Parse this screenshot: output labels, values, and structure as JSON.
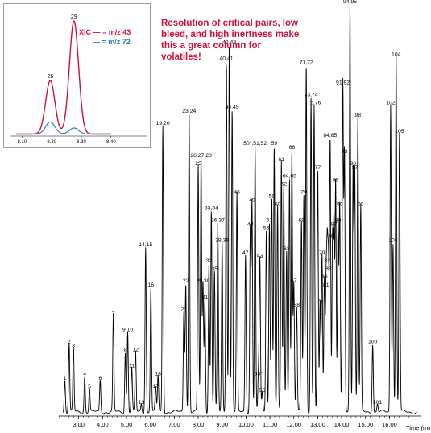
{
  "callout": "Resolution of critical pairs, low bleed, and high inertness make this a great column for volatiles!",
  "colors": {
    "main_trace": "#000000",
    "xic_43": "#d0103a",
    "xic_72": "#2a7fc0"
  },
  "chart_data": [
    {
      "type": "line",
      "title": "",
      "xlabel": "Time (min)",
      "ylabel": "",
      "xlim": [
        2.0,
        17.3
      ],
      "ylim": [
        0,
        100
      ],
      "x_ticks": [
        "3.00",
        "4.00",
        "5.00",
        "6.00",
        "7.00",
        "8.00",
        "9.00",
        "10.00",
        "11.00",
        "12.00",
        "13.00",
        "14.00",
        "15.00",
        "16.00"
      ],
      "peaks": [
        {
          "label": "1",
          "x": 2.42,
          "y": 8
        },
        {
          "label": "2",
          "x": 2.6,
          "y": 17
        },
        {
          "label": "3",
          "x": 2.78,
          "y": 16
        },
        {
          "label": "4",
          "x": 3.25,
          "y": 9
        },
        {
          "label": "5",
          "x": 3.45,
          "y": 6
        },
        {
          "label": "6",
          "x": 3.9,
          "y": 8
        },
        {
          "label": "7",
          "x": 4.45,
          "y": 24
        },
        {
          "label": "8",
          "x": 4.95,
          "y": 15
        },
        {
          "label": "9,10",
          "x": 5.05,
          "y": 20
        },
        {
          "label": "11",
          "x": 5.22,
          "y": 11
        },
        {
          "label": "12",
          "x": 5.38,
          "y": 15
        },
        {
          "label": "13",
          "x": 5.62,
          "y": 2
        },
        {
          "label": "14,15",
          "x": 5.8,
          "y": 41
        },
        {
          "label": "16",
          "x": 6.02,
          "y": 31
        },
        {
          "label": "17",
          "x": 6.22,
          "y": 6
        },
        {
          "label": "18",
          "x": 6.32,
          "y": 9
        },
        {
          "label": "19,20",
          "x": 6.52,
          "y": 71
        },
        {
          "label": "21",
          "x": 7.4,
          "y": 25
        },
        {
          "label": "22",
          "x": 7.48,
          "y": 32
        },
        {
          "label": "23,24",
          "x": 7.62,
          "y": 74
        },
        {
          "label": "25",
          "x": 8.0,
          "y": 61
        },
        {
          "label": "26,27,28",
          "x": 8.12,
          "y": 63
        },
        {
          "label": "29,30",
          "x": 8.2,
          "y": 32
        },
        {
          "label": "31",
          "x": 8.28,
          "y": 28
        },
        {
          "label": "32",
          "x": 8.45,
          "y": 37
        },
        {
          "label": "33,34",
          "x": 8.55,
          "y": 50
        },
        {
          "label": "35",
          "x": 8.68,
          "y": 35
        },
        {
          "label": "36,37",
          "x": 8.82,
          "y": 47
        },
        {
          "label": "38,39",
          "x": 9.0,
          "y": 42
        },
        {
          "label": "40,41",
          "x": 9.18,
          "y": 87
        },
        {
          "label": "42,43",
          "x": 9.3,
          "y": 91
        },
        {
          "label": "44,45",
          "x": 9.42,
          "y": 75
        },
        {
          "label": "46",
          "x": 9.62,
          "y": 54
        },
        {
          "label": "47",
          "x": 9.98,
          "y": 39
        },
        {
          "label": "48",
          "x": 10.18,
          "y": 46
        },
        {
          "label": "49",
          "x": 10.25,
          "y": 52
        },
        {
          "label": "50*,51,52",
          "x": 10.38,
          "y": 66
        },
        {
          "label": "53*",
          "x": 10.52,
          "y": 9
        },
        {
          "label": "54",
          "x": 10.58,
          "y": 38
        },
        {
          "label": "55",
          "x": 10.68,
          "y": 5
        },
        {
          "label": "56",
          "x": 10.85,
          "y": 45
        },
        {
          "label": "57",
          "x": 10.98,
          "y": 47
        },
        {
          "label": "58",
          "x": 11.08,
          "y": 53
        },
        {
          "label": "59",
          "x": 11.18,
          "y": 66
        },
        {
          "label": "60",
          "x": 11.32,
          "y": 51
        },
        {
          "label": "61",
          "x": 11.48,
          "y": 62
        },
        {
          "label": "62",
          "x": 11.58,
          "y": 56
        },
        {
          "label": "63",
          "x": 11.7,
          "y": 40
        },
        {
          "label": "64,65",
          "x": 11.82,
          "y": 58
        },
        {
          "label": "66",
          "x": 11.92,
          "y": 65
        },
        {
          "label": "67",
          "x": 12.0,
          "y": 32
        },
        {
          "label": "68",
          "x": 12.12,
          "y": 26
        },
        {
          "label": "69",
          "x": 12.32,
          "y": 47
        },
        {
          "label": "70",
          "x": 12.42,
          "y": 54
        },
        {
          "label": "71,72",
          "x": 12.52,
          "y": 86
        },
        {
          "label": "73,74",
          "x": 12.72,
          "y": 78
        },
        {
          "label": "75,76",
          "x": 12.85,
          "y": 76
        },
        {
          "label": "77",
          "x": 13.0,
          "y": 60
        },
        {
          "label": "78",
          "x": 13.1,
          "y": 27
        },
        {
          "label": "79",
          "x": 13.18,
          "y": 39
        },
        {
          "label": "80",
          "x": 13.28,
          "y": 33
        },
        {
          "label": "81",
          "x": 13.35,
          "y": 31
        },
        {
          "label": "82",
          "x": 13.4,
          "y": 37
        },
        {
          "label": "83",
          "x": 13.45,
          "y": 35
        },
        {
          "label": "84,85",
          "x": 13.52,
          "y": 68
        },
        {
          "label": "86",
          "x": 13.62,
          "y": 43
        },
        {
          "label": "87",
          "x": 13.68,
          "y": 46
        },
        {
          "label": "88",
          "x": 13.75,
          "y": 57
        },
        {
          "label": "89",
          "x": 13.85,
          "y": 47
        },
        {
          "label": "90",
          "x": 13.92,
          "y": 51
        },
        {
          "label": "91,92",
          "x": 14.05,
          "y": 81
        },
        {
          "label": "93",
          "x": 14.12,
          "y": 64
        },
        {
          "label": "94,95",
          "x": 14.35,
          "y": 101
        },
        {
          "label": "96",
          "x": 14.48,
          "y": 61
        },
        {
          "label": "97",
          "x": 14.55,
          "y": 60
        },
        {
          "label": "98",
          "x": 14.68,
          "y": 73
        },
        {
          "label": "99",
          "x": 14.8,
          "y": 51
        },
        {
          "label": "100",
          "x": 15.3,
          "y": 17
        },
        {
          "label": "101",
          "x": 15.5,
          "y": 2
        },
        {
          "label": "102",
          "x": 16.05,
          "y": 76
        },
        {
          "label": "103",
          "x": 16.15,
          "y": 42
        },
        {
          "label": "104",
          "x": 16.28,
          "y": 88
        },
        {
          "label": "105",
          "x": 16.42,
          "y": 69
        }
      ]
    },
    {
      "type": "line",
      "title": "",
      "xlabel": "",
      "ylabel": "",
      "xlim": [
        8.05,
        8.52
      ],
      "ylim": [
        0,
        100
      ],
      "x_ticks": [
        "8.10",
        "8.20",
        "8.30",
        "8.40"
      ],
      "legend_label": "XIC",
      "series": [
        {
          "name": "m/z 43",
          "peaks": [
            {
              "label": "26",
              "x": 8.195,
              "y": 44
            },
            {
              "label": "29",
              "x": 8.275,
              "y": 93
            }
          ]
        },
        {
          "name": "m/z 72",
          "peaks": [
            {
              "label": "",
              "x": 8.195,
              "y": 10
            },
            {
              "label": "",
              "x": 8.275,
              "y": 5
            }
          ]
        }
      ]
    }
  ]
}
